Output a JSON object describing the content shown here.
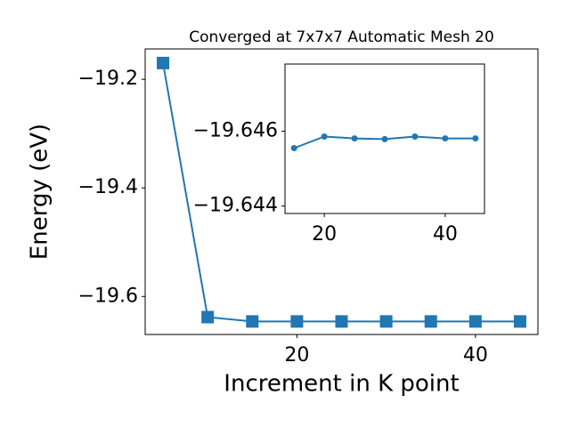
{
  "chart_data": [
    {
      "type": "line",
      "title": "Converged at 7x7x7 Automatic Mesh 20",
      "x_label": "Increment in K point",
      "y_label": "Energy (eV)",
      "x": [
        5,
        10,
        15,
        20,
        25,
        30,
        35,
        40,
        45
      ],
      "series": [
        {
          "name": null,
          "color": "#1f77b4",
          "marker": "square",
          "values": [
            -19.17,
            -19.638,
            -19.646,
            -19.646,
            -19.646,
            -19.646,
            -19.646,
            -19.646,
            -19.646
          ]
        }
      ],
      "xlim": [
        3,
        47
      ],
      "ylim": [
        -19.67,
        -19.144
      ],
      "xticks": [
        20,
        40
      ],
      "yticks": [
        {
          "value": -19.2,
          "label": "−19.2"
        },
        {
          "value": -19.4,
          "label": "−19.4"
        },
        {
          "value": -19.6,
          "label": "−19.6"
        }
      ]
    },
    {
      "type": "line",
      "x": [
        15,
        20,
        25,
        30,
        35,
        40,
        45
      ],
      "series": [
        {
          "name": null,
          "color": "#1f77b4",
          "marker": "circle",
          "values": [
            -19.64555,
            -19.64586,
            -19.64581,
            -19.64579,
            -19.64586,
            -19.64581,
            -19.64581
          ]
        }
      ],
      "xlim": [
        13.5,
        46.5
      ],
      "ylim": [
        -19.6438,
        -19.6478
      ],
      "xticks": [
        20,
        40
      ],
      "yticks": [
        {
          "value": -19.646,
          "label": "−19.646"
        },
        {
          "value": -19.644,
          "label": "−19.644"
        }
      ]
    }
  ]
}
